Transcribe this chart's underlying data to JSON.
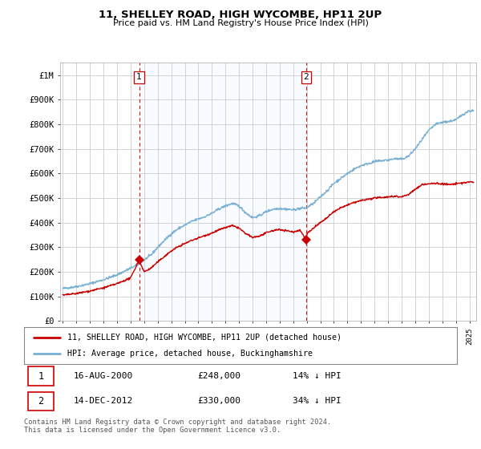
{
  "title": "11, SHELLEY ROAD, HIGH WYCOMBE, HP11 2UP",
  "subtitle": "Price paid vs. HM Land Registry's House Price Index (HPI)",
  "ylabel_ticks": [
    "£0",
    "£100K",
    "£200K",
    "£300K",
    "£400K",
    "£500K",
    "£600K",
    "£700K",
    "£800K",
    "£900K",
    "£1M"
  ],
  "ytick_values": [
    0,
    100000,
    200000,
    300000,
    400000,
    500000,
    600000,
    700000,
    800000,
    900000,
    1000000
  ],
  "ylim": [
    0,
    1050000
  ],
  "xlim_start": 1994.8,
  "xlim_end": 2025.5,
  "sale1_x": 2000.627,
  "sale1_y": 248000,
  "sale2_x": 2012.958,
  "sale2_y": 330000,
  "legend_line1": "11, SHELLEY ROAD, HIGH WYCOMBE, HP11 2UP (detached house)",
  "legend_line2": "HPI: Average price, detached house, Buckinghamshire",
  "table_row1_num": "1",
  "table_row1_date": "16-AUG-2000",
  "table_row1_price": "£248,000",
  "table_row1_hpi": "14% ↓ HPI",
  "table_row2_num": "2",
  "table_row2_date": "14-DEC-2012",
  "table_row2_price": "£330,000",
  "table_row2_hpi": "34% ↓ HPI",
  "footnote": "Contains HM Land Registry data © Crown copyright and database right 2024.\nThis data is licensed under the Open Government Licence v3.0.",
  "line_property_color": "#cc0000",
  "line_hpi_color": "#7ab0d4",
  "shade_color": "#ddeeff",
  "background_color": "#ffffff",
  "grid_color": "#cccccc",
  "vline_color": "#cc0000"
}
